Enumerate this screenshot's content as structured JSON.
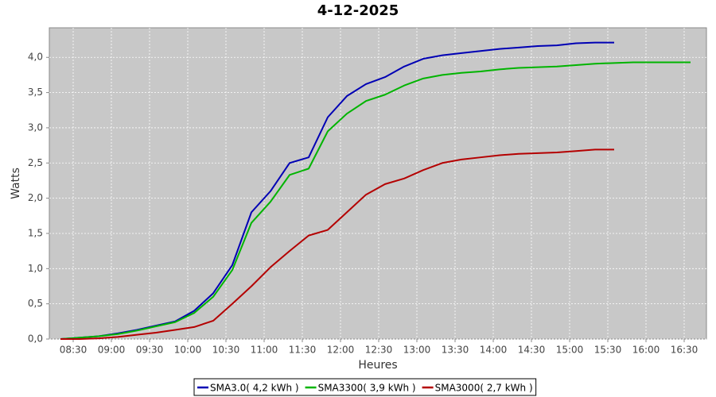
{
  "chart_data": {
    "type": "line",
    "title": "4-12-2025",
    "x_label": "Heures",
    "y_label": "Watts",
    "x": [
      500,
      515,
      530,
      545,
      560,
      575,
      590,
      605,
      620,
      635,
      650,
      665,
      680,
      695,
      710,
      725,
      740,
      755,
      770,
      785,
      800,
      815,
      830,
      845,
      860,
      875,
      890,
      905,
      920,
      935,
      950,
      965,
      980,
      995
    ],
    "series": [
      {
        "name": "SMA3.0( 4,2 kWh )",
        "color": "#0000b4",
        "values": [
          0,
          0.02,
          0.04,
          0.08,
          0.13,
          0.19,
          0.25,
          0.4,
          0.65,
          1.05,
          1.8,
          2.1,
          2.5,
          2.58,
          3.15,
          3.45,
          3.62,
          3.72,
          3.87,
          3.98,
          4.03,
          4.06,
          4.09,
          4.12,
          4.14,
          4.16,
          4.17,
          4.2,
          4.21,
          4.21,
          null,
          null,
          null,
          null
        ]
      },
      {
        "name": "SMA3300( 3,9 kWh )",
        "color": "#00b400",
        "values": [
          0,
          0.02,
          0.04,
          0.07,
          0.12,
          0.18,
          0.24,
          0.37,
          0.6,
          0.98,
          1.65,
          1.95,
          2.33,
          2.42,
          2.95,
          3.2,
          3.38,
          3.47,
          3.6,
          3.7,
          3.75,
          3.78,
          3.8,
          3.83,
          3.85,
          3.86,
          3.87,
          3.89,
          3.91,
          3.92,
          3.93,
          3.93,
          3.93,
          3.93
        ]
      },
      {
        "name": "SMA3000( 2,7 kWh )",
        "color": "#b40000",
        "values": [
          0,
          0,
          0.01,
          0.03,
          0.06,
          0.09,
          0.13,
          0.17,
          0.26,
          0.5,
          0.75,
          1.02,
          1.25,
          1.47,
          1.55,
          1.8,
          2.05,
          2.2,
          2.28,
          2.4,
          2.5,
          2.55,
          2.58,
          2.61,
          2.63,
          2.64,
          2.65,
          2.67,
          2.69,
          2.69,
          null,
          null,
          null,
          null
        ]
      }
    ],
    "xlim": [
      491.25,
      1007.5
    ],
    "xticks": [
      {
        "value": 510,
        "label": "08:30"
      },
      {
        "value": 540,
        "label": "09:00"
      },
      {
        "value": 570,
        "label": "09:30"
      },
      {
        "value": 600,
        "label": "10:00"
      },
      {
        "value": 630,
        "label": "10:30"
      },
      {
        "value": 660,
        "label": "11:00"
      },
      {
        "value": 690,
        "label": "11:30"
      },
      {
        "value": 720,
        "label": "12:00"
      },
      {
        "value": 750,
        "label": "12:30"
      },
      {
        "value": 780,
        "label": "13:00"
      },
      {
        "value": 810,
        "label": "13:30"
      },
      {
        "value": 840,
        "label": "14:00"
      },
      {
        "value": 870,
        "label": "14:30"
      },
      {
        "value": 900,
        "label": "15:00"
      },
      {
        "value": 930,
        "label": "15:30"
      },
      {
        "value": 960,
        "label": "16:00"
      },
      {
        "value": 990,
        "label": "16:30"
      }
    ],
    "ylim": [
      0,
      4.42
    ],
    "yticks": [
      {
        "value": 0,
        "label": "0,0"
      },
      {
        "value": 0.5,
        "label": "0,5"
      },
      {
        "value": 1,
        "label": "1,0"
      },
      {
        "value": 1.5,
        "label": "1,5"
      },
      {
        "value": 2,
        "label": "2,0"
      },
      {
        "value": 2.5,
        "label": "2,5"
      },
      {
        "value": 3,
        "label": "3,0"
      },
      {
        "value": 3.5,
        "label": "3,5"
      },
      {
        "value": 4,
        "label": "4,0"
      }
    ],
    "grid": true,
    "legend": "bottom"
  }
}
